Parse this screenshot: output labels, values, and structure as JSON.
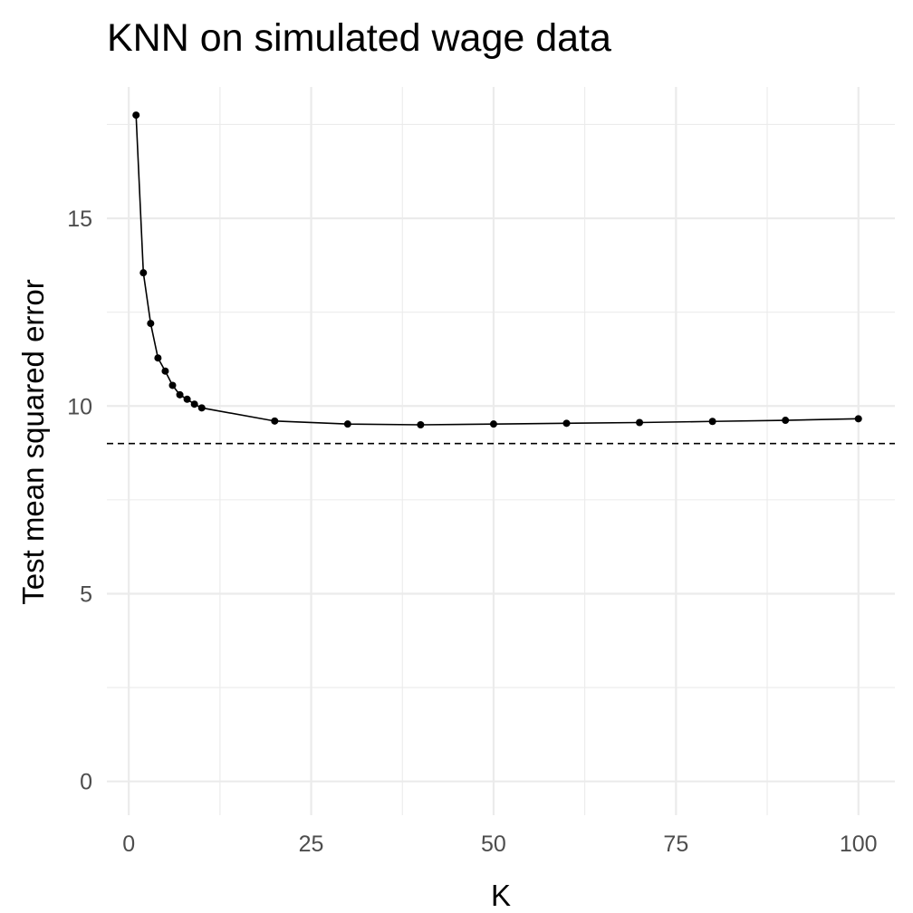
{
  "chart_data": {
    "type": "line",
    "title": "KNN on simulated wage data",
    "xlabel": "K",
    "ylabel": "Test mean squared error",
    "xlim": [
      -3,
      105
    ],
    "ylim": [
      -0.9,
      18.5
    ],
    "x_ticks": [
      0,
      25,
      50,
      75,
      100
    ],
    "x_tick_labels": [
      "0",
      "25",
      "50",
      "75",
      "100"
    ],
    "x_minor_ticks": [
      12.5,
      37.5,
      62.5,
      87.5
    ],
    "y_ticks": [
      0,
      5,
      10,
      15
    ],
    "y_tick_labels": [
      "0",
      "5",
      "10",
      "15"
    ],
    "y_minor_ticks": [
      2.5,
      7.5,
      12.5,
      17.5
    ],
    "grid": true,
    "legend": "none",
    "series": [
      {
        "x": [
          1,
          2,
          3,
          4,
          5,
          6,
          7,
          8,
          9,
          10,
          20,
          30,
          40,
          50,
          60,
          70,
          80,
          90,
          100
        ],
        "y": [
          17.75,
          13.55,
          12.2,
          11.28,
          10.93,
          10.55,
          10.3,
          10.18,
          10.05,
          9.95,
          9.6,
          9.52,
          9.5,
          9.52,
          9.54,
          9.56,
          9.59,
          9.62,
          9.66
        ],
        "color": "#000000",
        "markers": true
      }
    ],
    "reference_lines": [
      {
        "orientation": "horizontal",
        "y": 9.0,
        "style": "dashed",
        "color": "#000000"
      }
    ]
  }
}
